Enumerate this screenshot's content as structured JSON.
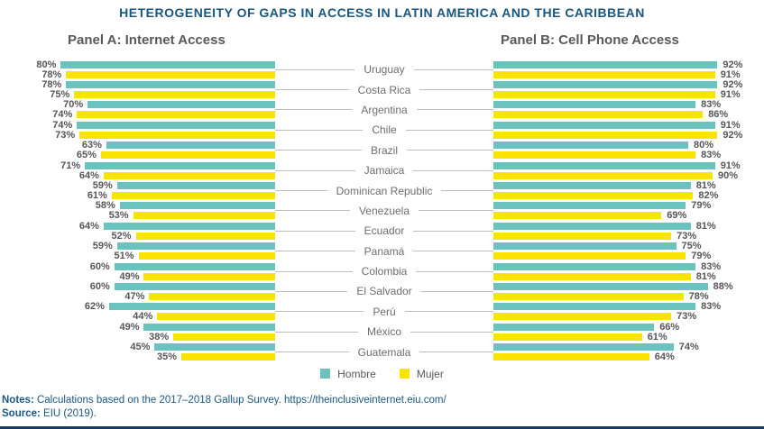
{
  "title": "HETEROGENEITY OF GAPS IN ACCESS IN LATIN AMERICA AND THE CARIBBEAN",
  "notes": {
    "label": "Notes:",
    "text": " Calculations based on the 2017–2018 Gallup Survey. https://theinclusiveinternet.eiu.com/"
  },
  "source": {
    "label": "Source:",
    "text": " EIU (2019)."
  },
  "colors": {
    "hombre": "#6ac3bf",
    "mujer": "#f8e400",
    "title_blue": "#1a5780",
    "heading_gray": "#58595b",
    "connector_gray": "#bcbec0",
    "bottom_rule_navy": "#1f3a5f"
  },
  "chart_data": {
    "type": "bar",
    "orientation": "horizontal-diverging",
    "title": "HETEROGENEITY OF GAPS IN ACCESS IN LATIN AMERICA AND THE CARIBBEAN",
    "xlim": [
      0,
      100
    ],
    "value_suffix": "%",
    "grid": false,
    "legend_position": "bottom-center",
    "panels": [
      {
        "id": "A",
        "label": "Panel A: Internet Access",
        "side": "left"
      },
      {
        "id": "B",
        "label": "Panel B: Cell Phone Access",
        "side": "right"
      }
    ],
    "categories": [
      "Uruguay",
      "Costa Rica",
      "Argentina",
      "Chile",
      "Brazil",
      "Jamaica",
      "Dominican Republic",
      "Venezuela",
      "Ecuador",
      "Panamá",
      "Colombia",
      "El Salvador",
      "Perú",
      "México",
      "Guatemala"
    ],
    "series": [
      {
        "name": "Hombre",
        "panel": "A",
        "color": "#6ac3bf",
        "values": [
          80,
          78,
          70,
          74,
          63,
          71,
          59,
          58,
          64,
          59,
          60,
          60,
          62,
          49,
          45
        ]
      },
      {
        "name": "Mujer",
        "panel": "A",
        "color": "#f8e400",
        "values": [
          78,
          75,
          74,
          73,
          65,
          64,
          61,
          53,
          52,
          51,
          49,
          47,
          44,
          38,
          35
        ]
      },
      {
        "name": "Hombre",
        "panel": "B",
        "color": "#6ac3bf",
        "values": [
          92,
          92,
          83,
          91,
          80,
          91,
          81,
          79,
          81,
          75,
          83,
          88,
          83,
          66,
          74
        ]
      },
      {
        "name": "Mujer",
        "panel": "B",
        "color": "#f8e400",
        "values": [
          91,
          91,
          86,
          92,
          83,
          90,
          82,
          69,
          73,
          79,
          81,
          78,
          73,
          61,
          64
        ]
      }
    ],
    "legend": [
      {
        "label": "Hombre",
        "color": "#6ac3bf"
      },
      {
        "label": "Mujer",
        "color": "#f8e400"
      }
    ]
  }
}
